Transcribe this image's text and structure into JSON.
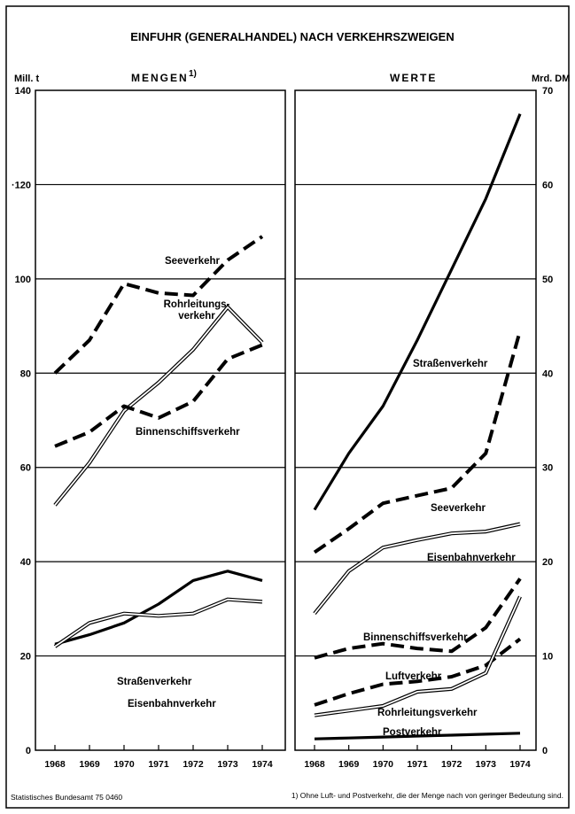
{
  "figure": {
    "title": "EINFUHR (GENERALHANDEL) NACH VERKEHRSZWEIGEN",
    "source": "Statistisches Bundesamt 75 0460",
    "footnote": "1) Ohne Luft- und Postverkehr, die der Menge nach von geringer Bedeutung sind."
  },
  "chart_data": [
    {
      "type": "line",
      "title": "MENGEN",
      "title_note": "1)",
      "ylabel": "Mill. t",
      "ylim": [
        0,
        140
      ],
      "yticks": [
        0,
        20,
        40,
        60,
        80,
        100,
        120,
        140
      ],
      "ytick_labels": [
        "0",
        "20",
        "40",
        "60",
        "80",
        "100",
        "·120",
        "140"
      ],
      "x": [
        "1968",
        "1969",
        "1970",
        "1971",
        "1972",
        "1973",
        "1974"
      ],
      "grid": true,
      "series": [
        {
          "name": "Seeverkehr",
          "style": "dashed",
          "values": [
            80,
            87,
            99,
            97,
            96.5,
            104,
            109
          ]
        },
        {
          "name": "Rohrleitungs-verkehr",
          "label_lines": [
            "Rohrleitungs-",
            "verkehr"
          ],
          "style": "double",
          "values": [
            52,
            61,
            72,
            78,
            85,
            94,
            86.5
          ]
        },
        {
          "name": "Binnenschiffsverkehr",
          "style": "dashed",
          "values": [
            64.5,
            67.5,
            73,
            70.5,
            74,
            83,
            86
          ]
        },
        {
          "name": "Straßenverkehr",
          "style": "solid",
          "values": [
            22.5,
            24.5,
            27,
            31,
            36,
            38,
            36
          ]
        },
        {
          "name": "Eisenbahnverkehr",
          "style": "double",
          "values": [
            22,
            27,
            29,
            28.5,
            29,
            32,
            31.5
          ]
        }
      ]
    },
    {
      "type": "line",
      "title": "WERTE",
      "ylabel": "Mrd. DM",
      "ylim": [
        0,
        70
      ],
      "yticks": [
        0,
        10,
        20,
        30,
        40,
        50,
        60,
        70
      ],
      "ytick_labels": [
        "0",
        "10",
        "20",
        "30",
        "40",
        "50",
        "60",
        "70"
      ],
      "x": [
        "1968",
        "1969",
        "1970",
        "1971",
        "1972",
        "1973",
        "1974"
      ],
      "grid": true,
      "series": [
        {
          "name": "Straßenverkehr",
          "style": "solid",
          "values": [
            25.5,
            31.5,
            36.5,
            43.5,
            51,
            58.5,
            67.5
          ]
        },
        {
          "name": "Seeverkehr",
          "style": "dashed",
          "values": [
            21,
            23.5,
            26.2,
            27,
            27.8,
            31.5,
            44.5
          ]
        },
        {
          "name": "Eisenbahnverkehr",
          "style": "double",
          "values": [
            14.5,
            19,
            21.5,
            22.3,
            23,
            23.2,
            24
          ]
        },
        {
          "name": "Binnenschiffsverkehr",
          "style": "dashed",
          "values": [
            9.8,
            10.8,
            11.3,
            10.8,
            10.5,
            13,
            18.2
          ]
        },
        {
          "name": "Luftverkehr",
          "style": "dashed",
          "values": [
            4.8,
            6,
            7,
            7.3,
            7.8,
            9,
            11.8
          ]
        },
        {
          "name": "Rohrleitungsverkehr",
          "style": "double",
          "values": [
            3.7,
            4.2,
            4.7,
            6.2,
            6.5,
            8.2,
            16.3
          ]
        },
        {
          "name": "Postverkehr",
          "style": "solid",
          "values": [
            1.2,
            1.3,
            1.4,
            1.5,
            1.6,
            1.7,
            1.8
          ]
        }
      ]
    }
  ]
}
